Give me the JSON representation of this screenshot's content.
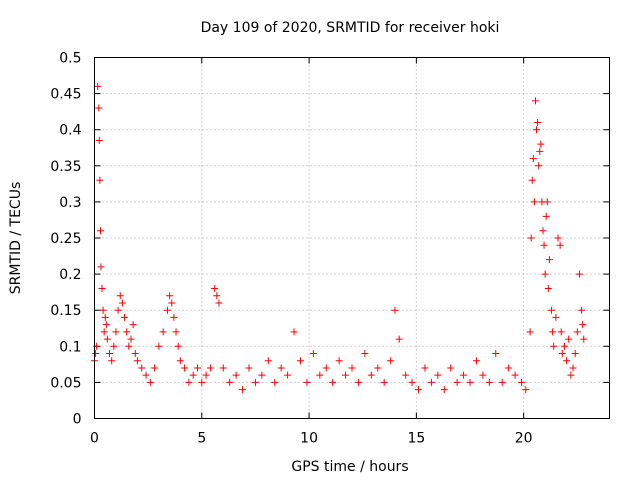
{
  "chart_data": {
    "type": "scatter",
    "title": "Day 109 of 2020, SRMTID for receiver hoki",
    "xlabel": "GPS time / hours",
    "ylabel": "SRMTID / TECUs",
    "xlim": [
      0,
      24
    ],
    "ylim": [
      0,
      0.5
    ],
    "xticks": [
      0,
      5,
      10,
      15,
      20
    ],
    "xtick_labels": [
      "0",
      "5",
      "10",
      "15",
      "20"
    ],
    "yticks": [
      0,
      0.05,
      0.1,
      0.15,
      0.2,
      0.25,
      0.3,
      0.35,
      0.4,
      0.45,
      0.5
    ],
    "ytick_labels": [
      "0",
      "0.05",
      "0.1",
      "0.15",
      "0.2",
      "0.25",
      "0.3",
      "0.35",
      "0.4",
      "0.45",
      "0.5"
    ],
    "grid": true,
    "marker": "+",
    "marker_color": "#ff0000",
    "series": [
      {
        "name": "SRMTID",
        "x": [
          0.0,
          0.05,
          0.1,
          0.15,
          0.2,
          0.22,
          0.25,
          0.28,
          0.3,
          0.35,
          0.4,
          0.45,
          0.5,
          0.55,
          0.6,
          0.7,
          0.8,
          0.9,
          1.0,
          1.1,
          1.2,
          1.3,
          1.4,
          1.5,
          1.6,
          1.7,
          1.8,
          1.9,
          2.0,
          2.2,
          2.4,
          2.6,
          2.8,
          3.0,
          3.2,
          3.4,
          3.5,
          3.6,
          3.7,
          3.8,
          3.9,
          4.0,
          4.2,
          4.4,
          4.6,
          4.8,
          5.0,
          5.2,
          5.4,
          5.6,
          5.7,
          5.8,
          6.0,
          6.3,
          6.6,
          6.9,
          7.2,
          7.5,
          7.8,
          8.1,
          8.4,
          8.7,
          9.0,
          9.3,
          9.6,
          9.9,
          10.2,
          10.5,
          10.8,
          11.1,
          11.4,
          11.7,
          12.0,
          12.3,
          12.6,
          12.9,
          13.2,
          13.5,
          13.8,
          14.0,
          14.2,
          14.5,
          14.8,
          15.1,
          15.4,
          15.7,
          16.0,
          16.3,
          16.6,
          16.9,
          17.2,
          17.5,
          17.8,
          18.1,
          18.4,
          18.7,
          19.0,
          19.3,
          19.6,
          19.9,
          20.1,
          20.3,
          20.35,
          20.4,
          20.45,
          20.5,
          20.55,
          20.6,
          20.65,
          20.7,
          20.75,
          20.8,
          20.85,
          20.9,
          20.95,
          21.0,
          21.05,
          21.1,
          21.15,
          21.2,
          21.3,
          21.35,
          21.4,
          21.5,
          21.6,
          21.7,
          21.75,
          21.8,
          21.9,
          22.0,
          22.1,
          22.2,
          22.3,
          22.4,
          22.5,
          22.6,
          22.7,
          22.75,
          22.8
        ],
        "y": [
          0.08,
          0.09,
          0.1,
          0.46,
          0.43,
          0.385,
          0.33,
          0.26,
          0.21,
          0.18,
          0.15,
          0.12,
          0.14,
          0.13,
          0.11,
          0.09,
          0.08,
          0.1,
          0.12,
          0.15,
          0.17,
          0.16,
          0.14,
          0.12,
          0.1,
          0.11,
          0.13,
          0.09,
          0.08,
          0.07,
          0.06,
          0.05,
          0.07,
          0.1,
          0.12,
          0.15,
          0.17,
          0.16,
          0.14,
          0.12,
          0.1,
          0.08,
          0.07,
          0.05,
          0.06,
          0.07,
          0.05,
          0.06,
          0.07,
          0.18,
          0.17,
          0.16,
          0.07,
          0.05,
          0.06,
          0.04,
          0.07,
          0.05,
          0.06,
          0.08,
          0.05,
          0.07,
          0.06,
          0.12,
          0.08,
          0.05,
          0.09,
          0.06,
          0.07,
          0.05,
          0.08,
          0.06,
          0.07,
          0.05,
          0.09,
          0.06,
          0.07,
          0.05,
          0.08,
          0.15,
          0.11,
          0.06,
          0.05,
          0.04,
          0.07,
          0.05,
          0.06,
          0.04,
          0.07,
          0.05,
          0.06,
          0.05,
          0.08,
          0.06,
          0.05,
          0.09,
          0.05,
          0.07,
          0.06,
          0.05,
          0.04,
          0.12,
          0.25,
          0.33,
          0.36,
          0.3,
          0.44,
          0.4,
          0.41,
          0.35,
          0.37,
          0.38,
          0.3,
          0.26,
          0.24,
          0.2,
          0.28,
          0.3,
          0.18,
          0.22,
          0.15,
          0.12,
          0.1,
          0.14,
          0.25,
          0.24,
          0.12,
          0.09,
          0.1,
          0.08,
          0.11,
          0.06,
          0.07,
          0.09,
          0.12,
          0.2,
          0.15,
          0.13,
          0.11
        ]
      }
    ]
  }
}
